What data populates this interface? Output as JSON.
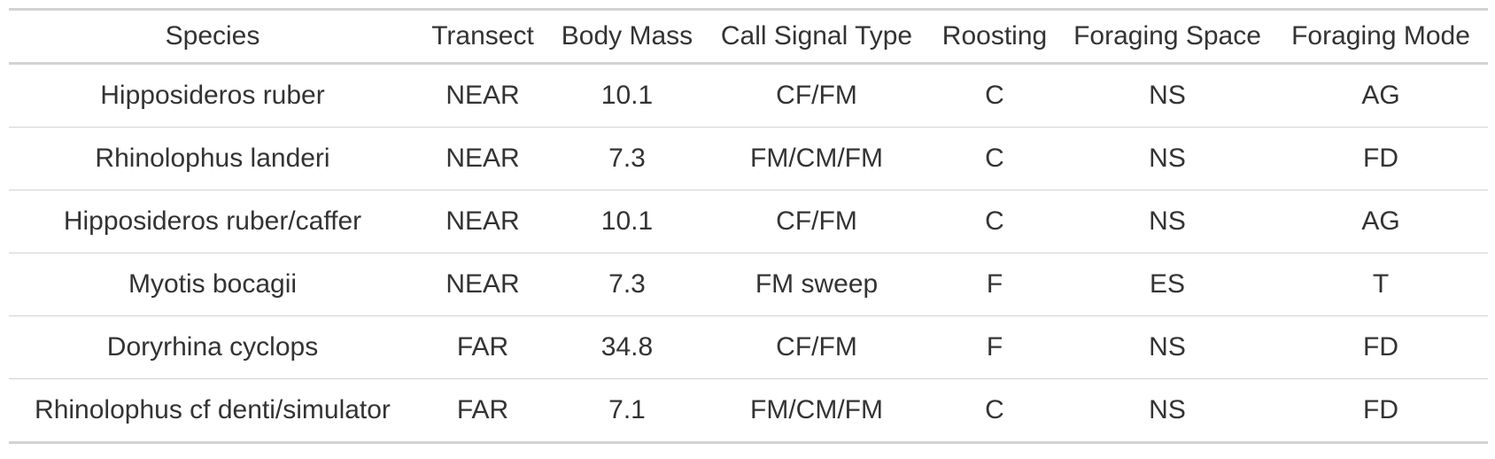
{
  "table": {
    "headers": [
      "Species",
      "Transect",
      "Body Mass",
      "Call Signal Type",
      "Roosting",
      "Foraging Space",
      "Foraging Mode"
    ],
    "rows": [
      [
        "Hipposideros ruber",
        "NEAR",
        "10.1",
        "CF/FM",
        "C",
        "NS",
        "AG"
      ],
      [
        "Rhinolophus landeri",
        "NEAR",
        "7.3",
        "FM/CM/FM",
        "C",
        "NS",
        "FD"
      ],
      [
        "Hipposideros ruber/caffer",
        "NEAR",
        "10.1",
        "CF/FM",
        "C",
        "NS",
        "AG"
      ],
      [
        "Myotis bocagii",
        "NEAR",
        "7.3",
        "FM sweep",
        "F",
        "ES",
        "T"
      ],
      [
        "Doryrhina cyclops",
        "FAR",
        "34.8",
        "CF/FM",
        "F",
        "NS",
        "FD"
      ],
      [
        "Rhinolophus cf denti/simulator",
        "FAR",
        "7.1",
        "FM/CM/FM",
        "C",
        "NS",
        "FD"
      ]
    ]
  }
}
